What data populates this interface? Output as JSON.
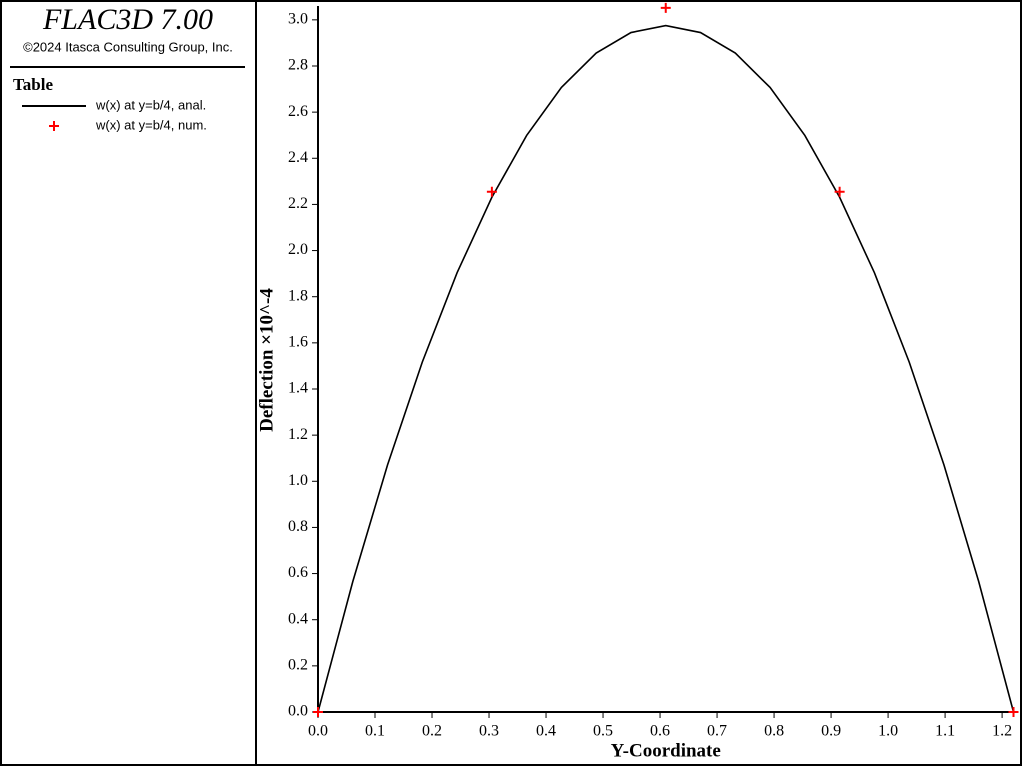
{
  "header": {
    "title": "FLAC3D 7.00",
    "copyright": "©2024 Itasca Consulting Group, Inc.",
    "legend_title": "Table"
  },
  "chart_data": {
    "type": "line",
    "xlabel": "Y-Coordinate",
    "ylabel": "Deflection ×10^-4",
    "xlim": [
      0,
      1.22
    ],
    "ylim": [
      0,
      3.06
    ],
    "xticks": [
      {
        "value": 0,
        "label": "0.0"
      },
      0.1,
      0.2,
      0.3,
      0.4,
      0.5,
      0.6,
      0.7,
      0.8,
      0.9,
      {
        "value": 1,
        "label": "1.0"
      },
      1.1,
      1.2
    ],
    "yticks": [
      {
        "value": 0,
        "label": "0.0"
      },
      0.2,
      0.4,
      0.6,
      0.8,
      {
        "value": 1,
        "label": "1.0"
      },
      1.2,
      1.4,
      1.6,
      1.8,
      {
        "value": 2,
        "label": "2.0"
      },
      2.2,
      2.4,
      2.6,
      2.8,
      {
        "value": 3,
        "label": "3.0"
      }
    ],
    "grid": false,
    "series": [
      {
        "name": "w(x) at y=b/4, anal.",
        "type": "line",
        "color": "#000000",
        "x": [
          0,
          0.061,
          0.122,
          0.183,
          0.244,
          0.305,
          0.366,
          0.427,
          0.488,
          0.549,
          0.61,
          0.671,
          0.732,
          0.793,
          0.854,
          0.915,
          0.976,
          1.037,
          1.098,
          1.159,
          1.22
        ],
        "values": [
          0,
          0.565,
          1.071,
          1.517,
          1.904,
          2.231,
          2.499,
          2.707,
          2.856,
          2.945,
          2.975,
          2.945,
          2.856,
          2.707,
          2.499,
          2.231,
          1.904,
          1.517,
          1.071,
          0.565,
          0
        ]
      },
      {
        "name": "w(x) at y=b/4, num.",
        "type": "scatter",
        "color": "#ff0000",
        "x": [
          0,
          0.305,
          0.61,
          0.915,
          1.22
        ],
        "values": [
          0,
          2.255,
          3.052,
          2.255,
          0
        ]
      }
    ]
  }
}
